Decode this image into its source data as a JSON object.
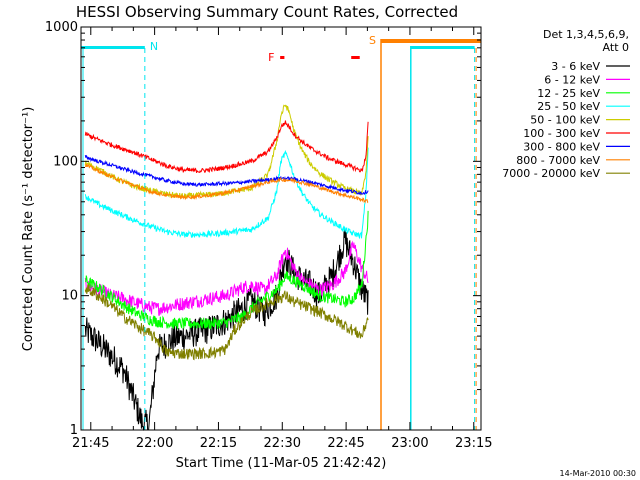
{
  "chart_data": {
    "type": "line",
    "title": "HESSI Observing Summary Count Rates, Corrected",
    "xlabel": "Start Time (11-Mar-05 21:42:42)",
    "ylabel": "Corrected Count Rate (s⁻¹ detector⁻¹)",
    "x_unit": "minutes since 21:42:42",
    "xlim": [
      0,
      94
    ],
    "ylim": [
      1,
      1000
    ],
    "yscale": "log",
    "grid": false,
    "legend_placement": "top-right, outside plot",
    "x_tick_labels": [
      "21:45",
      "22:00",
      "22:15",
      "22:30",
      "22:45",
      "23:00",
      "23:15"
    ],
    "x_tick_values": [
      2.3,
      17.3,
      32.3,
      47.3,
      62.3,
      77.3,
      92.3
    ],
    "y_tick_labels": [
      "1",
      "10",
      "100",
      "1000"
    ],
    "y_tick_values": [
      1,
      10,
      100,
      1000
    ],
    "legend_header": [
      "Det 1,3,4,5,6,9,",
      "Att 0"
    ],
    "series": [
      {
        "name": "3 - 6 keV",
        "color": "#000000",
        "x": [
          1,
          4,
          7,
          10,
          13,
          14.5,
          16,
          18,
          22,
          26,
          30,
          34,
          38,
          40,
          43,
          46,
          48,
          50,
          52,
          54,
          56,
          59,
          62,
          64,
          66,
          67.5
        ],
        "y": [
          5.5,
          4.5,
          3.6,
          2.8,
          1.5,
          1.1,
          1.1,
          4,
          4.8,
          5.2,
          5.6,
          6.5,
          8,
          9.2,
          7.4,
          10,
          20,
          15,
          13,
          12,
          10,
          14,
          26,
          18,
          11,
          9
        ]
      },
      {
        "name": "6 - 12 keV",
        "color": "#ff00ff",
        "x": [
          1,
          4,
          7,
          10,
          13,
          16,
          18,
          22,
          26,
          30,
          34,
          38,
          40,
          43,
          46,
          48,
          50,
          52,
          54,
          56,
          59,
          62,
          64,
          66,
          67.5
        ],
        "y": [
          12,
          11,
          10,
          9.5,
          8.8,
          8.2,
          8,
          8.5,
          9,
          9.5,
          10,
          11.5,
          12,
          11,
          14,
          22,
          16,
          13,
          12,
          11,
          12,
          15,
          24,
          16,
          13
        ]
      },
      {
        "name": "12 - 25 keV",
        "color": "#00ff00",
        "x": [
          1,
          4,
          7,
          10,
          13,
          16,
          18,
          22,
          26,
          30,
          34,
          38,
          40,
          43,
          46,
          48,
          50,
          52,
          54,
          56,
          59,
          62,
          64,
          66,
          67.5
        ],
        "y": [
          13,
          11.5,
          10,
          8.5,
          7.4,
          6.7,
          6.4,
          6.2,
          6.2,
          6.2,
          6.3,
          7,
          8,
          9.5,
          11,
          14,
          13,
          12,
          11,
          10,
          9.5,
          9,
          9.5,
          12,
          40
        ]
      },
      {
        "name": "25 - 50 keV",
        "color": "#00ffff",
        "x": [
          1,
          4,
          8,
          12,
          16,
          20,
          24,
          28,
          32,
          36,
          40,
          44,
          46,
          47,
          48,
          49,
          50,
          52,
          54,
          56,
          58,
          60,
          62,
          64,
          66,
          67,
          67.5
        ],
        "y": [
          55,
          48,
          42,
          37,
          33,
          30,
          28.5,
          28.5,
          29,
          30,
          31,
          38,
          60,
          100,
          115,
          100,
          78,
          58,
          47,
          41,
          37,
          34,
          31,
          29,
          28,
          60,
          130
        ]
      },
      {
        "name": "50 - 100 keV",
        "color": "#cccc00",
        "x": [
          1,
          4,
          8,
          12,
          16,
          20,
          24,
          28,
          32,
          36,
          40,
          44,
          46,
          47,
          48,
          49,
          50,
          52,
          54,
          56,
          58,
          60,
          62,
          64,
          66,
          67,
          67.5
        ],
        "y": [
          97,
          88,
          75,
          66,
          61,
          57,
          55,
          56,
          57,
          60,
          63,
          80,
          140,
          220,
          265,
          230,
          170,
          120,
          95,
          82,
          74,
          68,
          63,
          60,
          57,
          85,
          150
        ]
      },
      {
        "name": "100 - 300 keV",
        "color": "#ff0000",
        "x": [
          1,
          4,
          8,
          12,
          16,
          20,
          24,
          28,
          32,
          36,
          40,
          44,
          46,
          47,
          48,
          49,
          50,
          52,
          54,
          56,
          58,
          60,
          62,
          64,
          66,
          67,
          67.5
        ],
        "y": [
          160,
          145,
          130,
          118,
          105,
          93,
          86,
          85,
          88,
          93,
          100,
          118,
          150,
          180,
          195,
          180,
          160,
          140,
          125,
          115,
          106,
          100,
          95,
          90,
          85,
          110,
          200
        ]
      },
      {
        "name": "300 - 800 keV",
        "color": "#0000ff",
        "x": [
          1,
          4,
          8,
          12,
          16,
          20,
          24,
          28,
          32,
          36,
          40,
          44,
          47,
          50,
          54,
          58,
          62,
          66,
          67.5
        ],
        "y": [
          108,
          100,
          92,
          84,
          78,
          72,
          68,
          67,
          68,
          69,
          71,
          73,
          75,
          74,
          70,
          65,
          61,
          58,
          60
        ]
      },
      {
        "name": "800 - 7000 keV",
        "color": "#ff8000",
        "x": [
          1,
          4,
          8,
          12,
          16,
          20,
          24,
          28,
          32,
          36,
          40,
          44,
          47,
          50,
          54,
          58,
          62,
          66,
          67.5
        ],
        "y": [
          94,
          85,
          75,
          67,
          60,
          56,
          54,
          55,
          57,
          60,
          65,
          70,
          73,
          72,
          67,
          61,
          56,
          52,
          50
        ]
      },
      {
        "name": "7000 - 20000 keV",
        "color": "#808000",
        "x": [
          1,
          4,
          7,
          10,
          13,
          16,
          18,
          20,
          24,
          28,
          32,
          34,
          36,
          38,
          40,
          43,
          46,
          48,
          50,
          52,
          54,
          56,
          58,
          60,
          62,
          64,
          66,
          67.5
        ],
        "y": [
          11.5,
          10,
          8.5,
          7,
          6,
          5.2,
          4.7,
          3.8,
          3.7,
          3.7,
          3.8,
          4,
          5.5,
          6.5,
          7.5,
          8.5,
          9.5,
          10,
          9,
          8.5,
          8,
          7.5,
          7,
          6.5,
          6,
          5.5,
          5,
          7
        ]
      }
    ],
    "annotations": {
      "saa_night": {
        "label_n": "N",
        "label_s": "S",
        "color_cyan": "#00e5ee",
        "color_orange": "#ff8000",
        "n_bar": [
          0,
          15
        ],
        "n_solid_line": 15,
        "n_dashed_line": 15,
        "s_solid_line": 70.5,
        "s_bar": [
          70.5,
          94
        ],
        "cyan_solid_line": 77.5,
        "cyan_dashed_line": 92.5
      },
      "flare": {
        "label": "F",
        "color": "#ff0000",
        "bars": [
          [
            46.8,
            47.8
          ],
          [
            63.5,
            65.5
          ]
        ]
      }
    }
  },
  "footer": {
    "timestamp": "14-Mar-2010 00:30"
  }
}
